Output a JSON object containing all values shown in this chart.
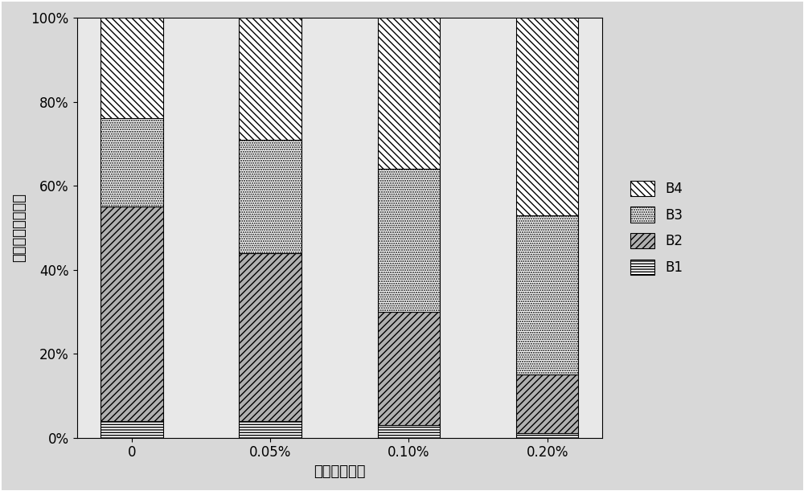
{
  "categories": [
    "0",
    "0.05%",
    "0.10%",
    "0.20%"
  ],
  "B1": [
    0.04,
    0.04,
    0.03,
    0.01
  ],
  "B2": [
    0.51,
    0.4,
    0.27,
    0.14
  ],
  "B3": [
    0.21,
    0.27,
    0.34,
    0.38
  ],
  "B4": [
    0.24,
    0.29,
    0.36,
    0.47
  ],
  "xlabel": "调控剂添加量",
  "ylabel": "各形态相对百分比",
  "bar_width": 0.45,
  "background_color": "#d8d8d8",
  "plot_bg_color": "#e8e8e8",
  "legend_labels": [
    "B4",
    "B3",
    "B2",
    "B1"
  ],
  "axis_fontsize": 13,
  "tick_fontsize": 12,
  "legend_fontsize": 12
}
